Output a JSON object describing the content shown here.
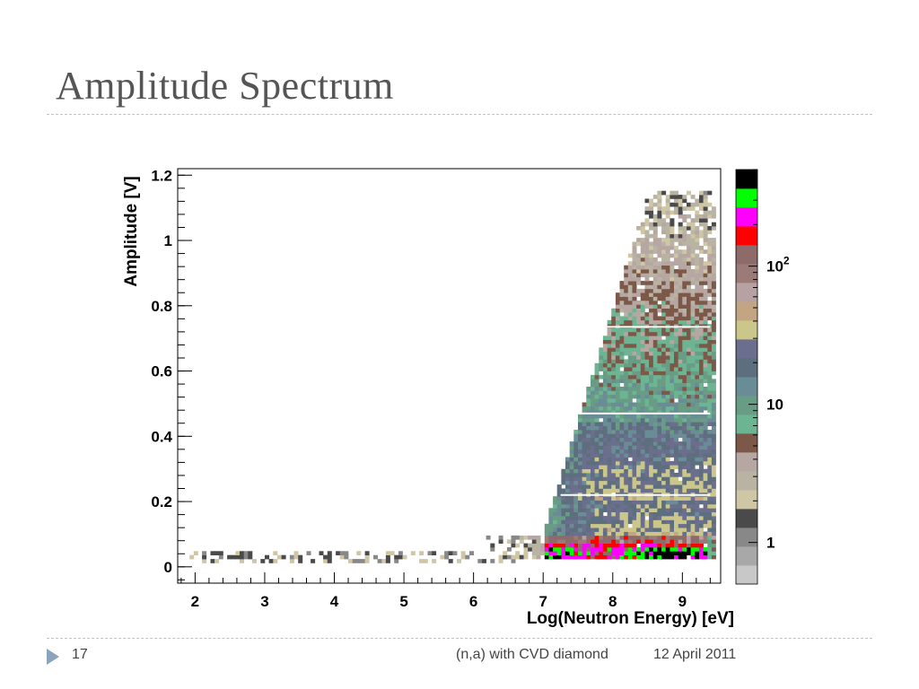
{
  "slide": {
    "title": "Amplitude Spectrum",
    "page_number": "17",
    "footer_text": "(n,a) with CVD diamond",
    "footer_date": "12 April 2011"
  },
  "chart_data": {
    "type": "heatmap",
    "title": "",
    "xlabel": "Log(Neutron Energy) [eV]",
    "ylabel": "Amplitude [V]",
    "xlim": [
      1.75,
      9.55
    ],
    "ylim": [
      -0.05,
      1.22
    ],
    "xticks": [
      2,
      3,
      4,
      5,
      6,
      7,
      8,
      9
    ],
    "xtick_labels": [
      "2",
      "3",
      "4",
      "5",
      "6",
      "7",
      "8",
      "9"
    ],
    "yticks": [
      0,
      0.2,
      0.4,
      0.6,
      0.8,
      1,
      1.2
    ],
    "ytick_labels": [
      "0",
      "0.2",
      "0.4",
      "0.6",
      "0.8",
      "1",
      "1.2"
    ],
    "z_scale": "log",
    "zlim": [
      0.5,
      500
    ],
    "colorbar_ticks": [
      1,
      10,
      100
    ],
    "colorbar_labels": [
      "1",
      "10",
      "10^2"
    ],
    "grid": false,
    "legend": "none",
    "palette": [
      "#c8c8c8",
      "#a8a8a8",
      "#888888",
      "#4a4a4a",
      "#cfc6a6",
      "#b9b3a3",
      "#b7a7a2",
      "#7c5848",
      "#6db492",
      "#689c84",
      "#6a8c96",
      "#5d6e7e",
      "#6b6e8c",
      "#cbc78a",
      "#c3a584",
      "#b7a1a2",
      "#9b7b78",
      "#8e6a6a",
      "#ff0000",
      "#ff00ff",
      "#00ff00",
      "#000000"
    ],
    "density_regions": [
      {
        "x": [
          1.95,
          6.55
        ],
        "y": [
          0.015,
          0.04
        ],
        "level": "1-3 counts"
      },
      {
        "x": [
          6.3,
          7.2
        ],
        "y": [
          0.02,
          0.1
        ],
        "level": "3-10 counts"
      },
      {
        "x": [
          7.2,
          9.4
        ],
        "y": [
          0.2,
          0.45
        ],
        "level": "~10-30 counts"
      },
      {
        "x": [
          7.0,
          9.4
        ],
        "y": [
          0.06,
          0.1
        ],
        "level": "~200 counts (red/magenta)"
      },
      {
        "x": [
          7.0,
          9.2
        ],
        "y": [
          0.025,
          0.06
        ],
        "level": "300-500 counts (green/black)"
      },
      {
        "x": [
          7.6,
          9.45
        ],
        "y": [
          0.7,
          1.15
        ],
        "level": "1-3 counts (sparse)"
      }
    ]
  }
}
